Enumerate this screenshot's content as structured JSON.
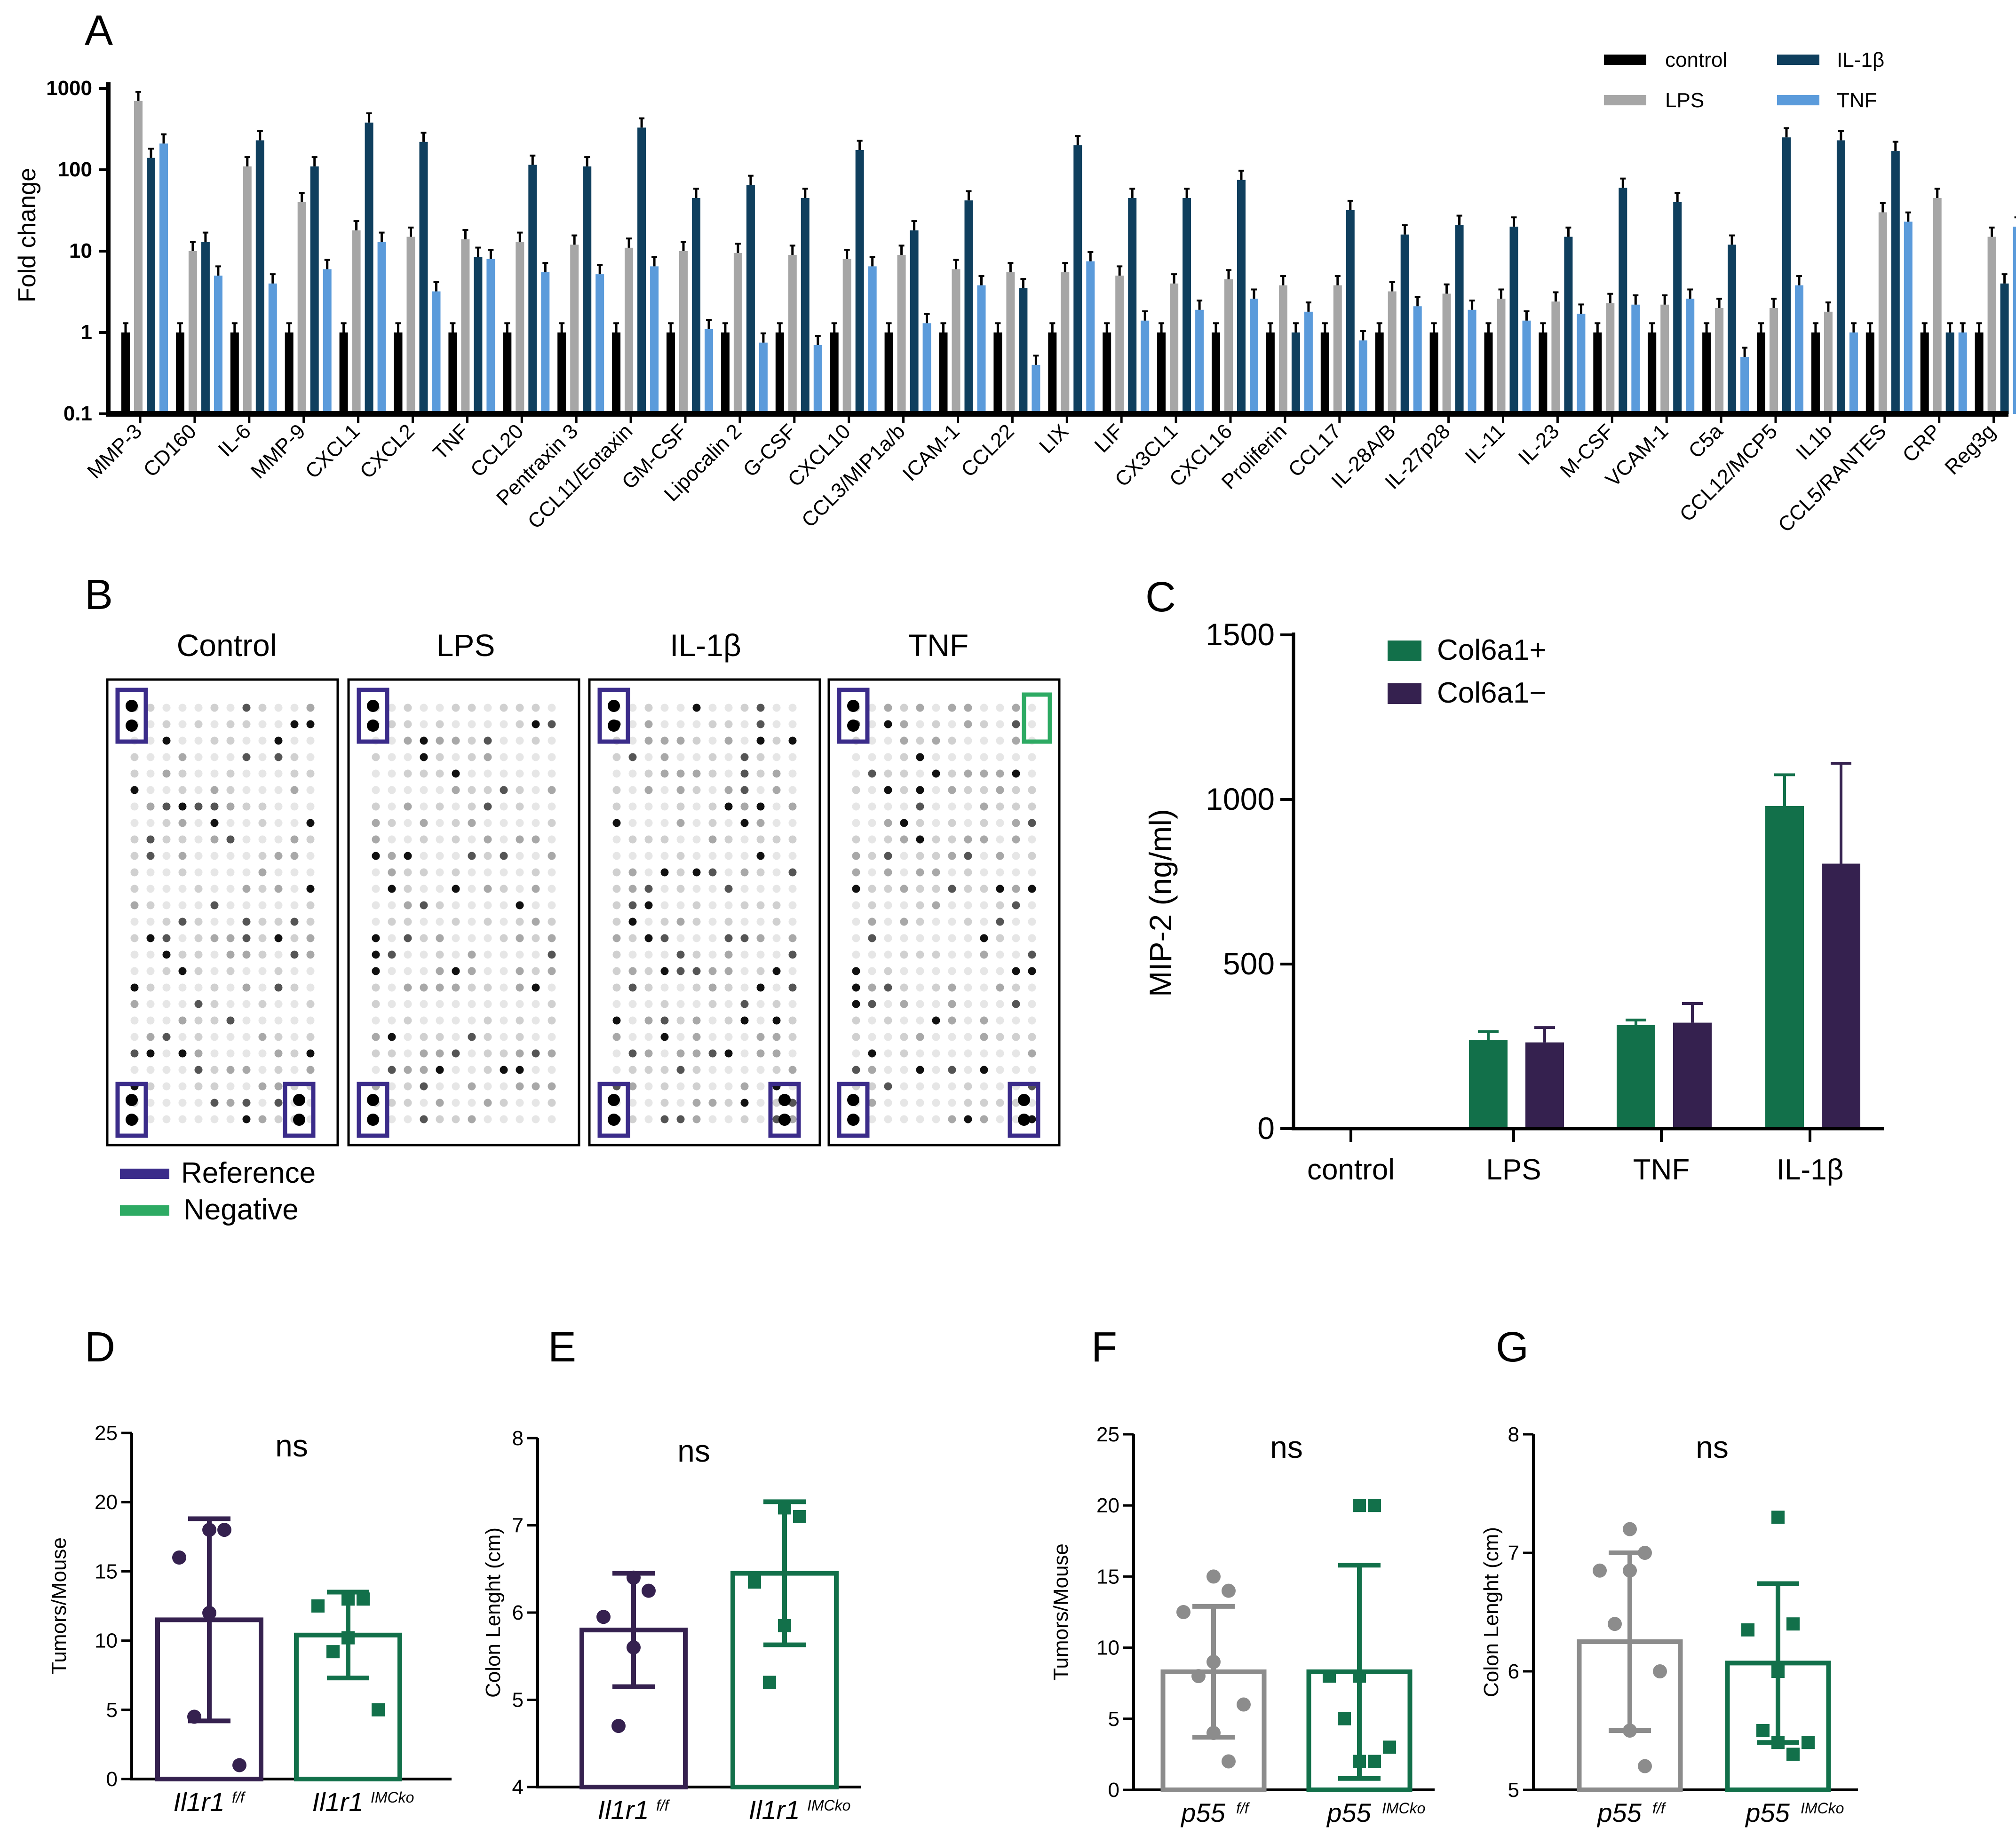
{
  "panel_labels": {
    "a": "A",
    "b": "B",
    "c": "C",
    "d": "D",
    "e": "E",
    "f": "F",
    "g": "G"
  },
  "colors": {
    "control": "#000000",
    "lps": "#a6a6a6",
    "il1b": "#0f3f5e",
    "tnf": "#5b9bdb",
    "col_pos": "#12704a",
    "col_neg": "#35214f",
    "ref_box": "#3b2c8a",
    "neg_box": "#2daa63",
    "gray": "#8c8c8c",
    "purple": "#35214f",
    "green": "#12704a"
  },
  "chart_data": [
    {
      "id": "A",
      "type": "bar",
      "ylabel": "Fold change",
      "yscale": "log",
      "ylim": [
        0.1,
        1000
      ],
      "yticks": [
        "0.1",
        "1",
        "10",
        "100",
        "1000"
      ],
      "legend": [
        "control",
        "LPS",
        "IL-1β",
        "TNF"
      ],
      "categories": [
        "MMP-3",
        "CD160",
        "IL-6",
        "MMP-9",
        "CXCL1",
        "CXCL2",
        "TNF",
        "CCL20",
        "Pentraxin 3",
        "CCL11/Eotaxin",
        "GM-CSF",
        "Lipocalin 2",
        "G-CSF",
        "CXCL10",
        "CCL3/MIP1a/b",
        "ICAM-1",
        "CCL22",
        "LIX",
        "LIF",
        "CX3CL1",
        "CXCL16",
        "Proliferin",
        "CCL17",
        "IL-28A/B",
        "IL-27p28",
        "IL-11",
        "IL-23",
        "M-CSF",
        "VCAM-1",
        "C5a",
        "CCL12/MCP5",
        "IL1b",
        "CCL5/RANTES",
        "CRP",
        "Reg3g"
      ],
      "series": [
        {
          "name": "control",
          "values": [
            1,
            1,
            1,
            1,
            1,
            1,
            1,
            1,
            1,
            1,
            1,
            1,
            1,
            1,
            1,
            1,
            1,
            1,
            1,
            1,
            1,
            1,
            1,
            1,
            1,
            1,
            1,
            1,
            1,
            1,
            1,
            1,
            1,
            1,
            1
          ]
        },
        {
          "name": "LPS",
          "values": [
            700,
            10,
            110,
            40,
            18,
            15,
            14,
            13,
            12,
            11,
            10,
            9.5,
            9,
            8,
            9,
            6,
            5.5,
            5.5,
            5,
            4,
            4.5,
            3.8,
            3.8,
            3.2,
            3,
            2.6,
            2.4,
            2.3,
            2.2,
            2,
            2,
            1.8,
            30,
            45,
            15
          ]
        },
        {
          "name": "IL-1β",
          "values": [
            140,
            13,
            230,
            110,
            380,
            220,
            8.5,
            115,
            110,
            330,
            45,
            65,
            45,
            175,
            18,
            42,
            3.5,
            200,
            45,
            45,
            75,
            1,
            32,
            16,
            21,
            20,
            15,
            60,
            40,
            12,
            250,
            230,
            170,
            1,
            4
          ]
        },
        {
          "name": "TNF",
          "values": [
            210,
            5,
            4,
            6,
            13,
            3.2,
            8,
            5.5,
            5.2,
            6.5,
            1.1,
            0.75,
            0.7,
            6.5,
            1.3,
            3.8,
            0.4,
            7.5,
            1.4,
            1.9,
            2.6,
            1.8,
            0.8,
            2.1,
            1.9,
            1.4,
            1.7,
            2.2,
            2.6,
            0.5,
            3.8,
            1,
            23,
            1,
            20
          ]
        }
      ]
    },
    {
      "id": "C",
      "type": "bar",
      "ylabel": "MIP-2 (ng/ml)",
      "ylim": [
        0,
        1500
      ],
      "yticks": [
        "0",
        "500",
        "1000",
        "1500"
      ],
      "categories": [
        "control",
        "LPS",
        "TNF",
        "IL-1β"
      ],
      "series": [
        {
          "name": "Col6a1+",
          "values": [
            0,
            270,
            315,
            980
          ],
          "errors": [
            0,
            25,
            15,
            95
          ]
        },
        {
          "name": "Col6a1−",
          "values": [
            0,
            262,
            322,
            805
          ],
          "errors": [
            0,
            45,
            58,
            305
          ]
        }
      ]
    },
    {
      "id": "D",
      "type": "bar",
      "ylabel": "Tumors/Mouse",
      "ylim": [
        0,
        25
      ],
      "yticks": [
        "0",
        "5",
        "10",
        "15",
        "20",
        "25"
      ],
      "annotation": "ns",
      "groups": [
        {
          "name": "Il1r1",
          "sup": "f/f",
          "mean": 11.5,
          "sd": 7.3,
          "points": [
            18,
            18,
            16,
            12,
            4.5,
            1
          ]
        },
        {
          "name": "Il1r1",
          "sup": "IMCko",
          "mean": 10.4,
          "sd": 3.1,
          "points": [
            13,
            13,
            12.5,
            10.2,
            9.2,
            5
          ]
        }
      ]
    },
    {
      "id": "E",
      "type": "bar",
      "ylabel": "Colon Lenght (cm)",
      "ylim": [
        4,
        8
      ],
      "yticks": [
        "4",
        "5",
        "6",
        "7",
        "8"
      ],
      "annotation": "ns",
      "groups": [
        {
          "name": "Il1r1",
          "sup": "f/f",
          "mean": 5.8,
          "sd": 0.65,
          "points": [
            6.4,
            6.25,
            5.95,
            5.6,
            4.7
          ]
        },
        {
          "name": "Il1r1",
          "sup": "IMCko",
          "mean": 6.45,
          "sd": 0.82,
          "points": [
            7.2,
            7.1,
            6.35,
            5.85,
            5.2
          ]
        }
      ]
    },
    {
      "id": "F",
      "type": "bar",
      "ylabel": "Tumors/Mouse",
      "ylim": [
        0,
        25
      ],
      "yticks": [
        "0",
        "5",
        "10",
        "15",
        "20",
        "25"
      ],
      "annotation": "ns",
      "groups": [
        {
          "name": "p55",
          "sup": "f/f",
          "mean": 8.3,
          "sd": 4.6,
          "points": [
            15,
            14,
            12.5,
            9,
            8,
            6,
            4,
            2
          ]
        },
        {
          "name": "p55",
          "sup": "IMCko",
          "mean": 8.3,
          "sd": 7.5,
          "points": [
            20,
            20,
            8,
            8,
            5,
            3,
            2,
            2
          ]
        }
      ]
    },
    {
      "id": "G",
      "type": "bar",
      "ylabel": "Colon Lenght (cm)",
      "ylim": [
        5,
        8
      ],
      "yticks": [
        "5",
        "6",
        "7",
        "8"
      ],
      "annotation": "ns",
      "groups": [
        {
          "name": "p55",
          "sup": "f/f",
          "mean": 6.25,
          "sd": 0.75,
          "points": [
            7.2,
            7.0,
            6.85,
            6.85,
            6.4,
            6.0,
            5.5,
            5.2
          ]
        },
        {
          "name": "p55",
          "sup": "IMCko",
          "mean": 6.07,
          "sd": 0.67,
          "points": [
            7.3,
            6.4,
            6.35,
            6.0,
            5.5,
            5.4,
            5.4,
            5.3
          ]
        }
      ]
    }
  ],
  "panel_b": {
    "titles": [
      "Control",
      "LPS",
      "IL-1β",
      "TNF"
    ],
    "legend": [
      "Reference",
      "Negative"
    ]
  }
}
